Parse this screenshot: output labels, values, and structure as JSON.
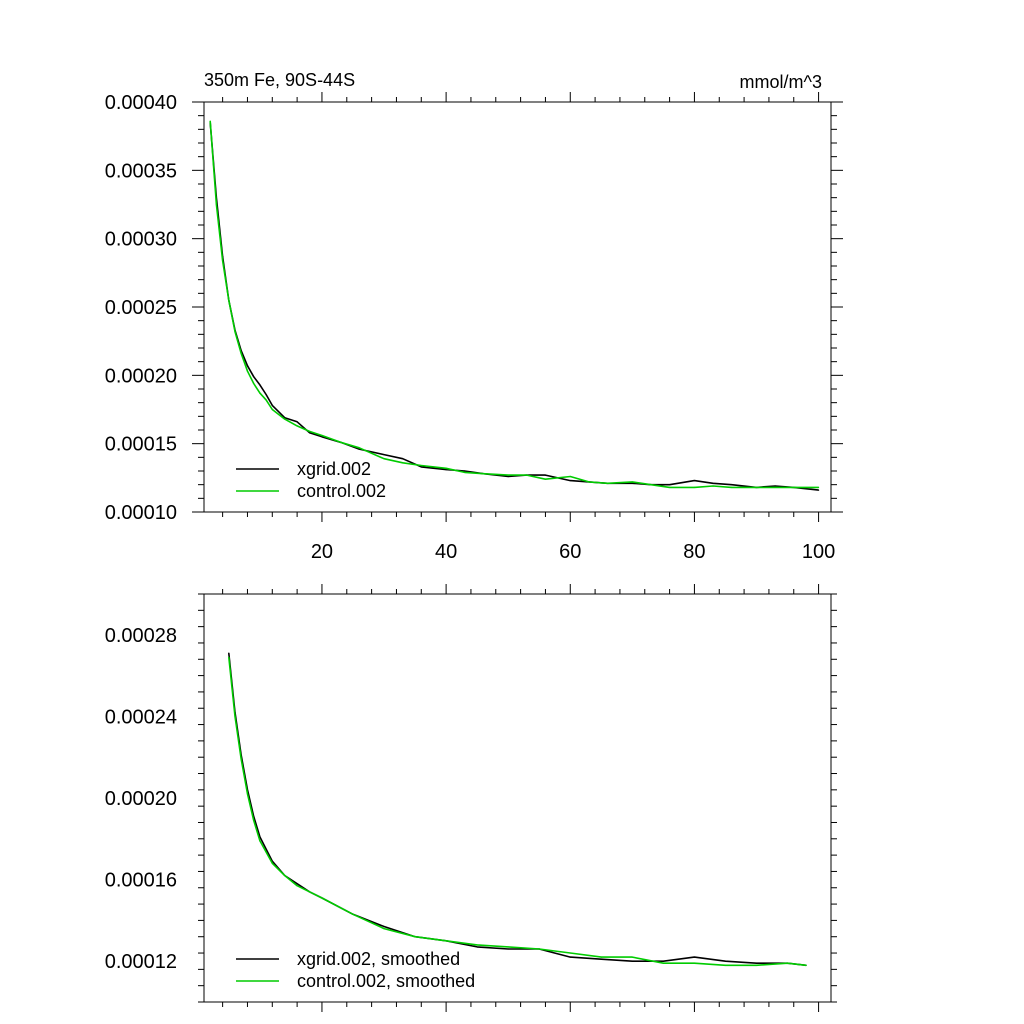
{
  "chart_data": [
    {
      "type": "line",
      "title": "350m Fe, 90S-44S",
      "units": "mmol/m^3",
      "xlim": [
        1,
        102
      ],
      "ylim": [
        0.0001,
        0.0004
      ],
      "xticks": [
        20,
        40,
        60,
        80,
        100
      ],
      "xtick_labels": [
        "20",
        "40",
        "60",
        "80",
        "100"
      ],
      "yticks": [
        0.0001,
        0.00015,
        0.0002,
        0.00025,
        0.0003,
        0.00035,
        0.0004
      ],
      "ytick_labels": [
        "0.00010",
        "0.00015",
        "0.00020",
        "0.00025",
        "0.00030",
        "0.00035",
        "0.00040"
      ],
      "legend_position": "bottom-left",
      "colors": {
        "xgrid.002": "#000000",
        "control.002": "#00cc00"
      },
      "series": [
        {
          "name": "xgrid.002",
          "x": [
            2,
            3,
            4,
            5,
            6,
            7,
            8,
            9,
            10,
            11,
            12,
            14,
            16,
            18,
            20,
            23,
            26,
            30,
            33,
            36,
            40,
            43,
            46,
            50,
            53,
            56,
            60,
            63,
            66,
            70,
            73,
            76,
            80,
            83,
            86,
            90,
            93,
            96,
            100
          ],
          "y": [
            0.000385,
            0.00033,
            0.000287,
            0.000255,
            0.000233,
            0.000218,
            0.000207,
            0.000199,
            0.000193,
            0.000186,
            0.000178,
            0.000169,
            0.000166,
            0.000158,
            0.000155,
            0.000151,
            0.000146,
            0.000142,
            0.000139,
            0.000133,
            0.000131,
            0.00013,
            0.000128,
            0.000126,
            0.000127,
            0.000127,
            0.000123,
            0.000122,
            0.000121,
            0.000121,
            0.00012,
            0.00012,
            0.000123,
            0.000121,
            0.00012,
            0.000118,
            0.000119,
            0.000118,
            0.000116
          ]
        },
        {
          "name": "control.002",
          "x": [
            2,
            3,
            4,
            5,
            6,
            7,
            8,
            9,
            10,
            11,
            12,
            14,
            16,
            18,
            20,
            23,
            26,
            30,
            33,
            36,
            40,
            43,
            46,
            50,
            53,
            56,
            60,
            63,
            66,
            70,
            73,
            76,
            80,
            83,
            86,
            90,
            93,
            96,
            100
          ],
          "y": [
            0.000386,
            0.000325,
            0.000284,
            0.000255,
            0.000232,
            0.000216,
            0.000203,
            0.000194,
            0.000187,
            0.000182,
            0.000175,
            0.000168,
            0.000163,
            0.000159,
            0.000156,
            0.000151,
            0.000147,
            0.000139,
            0.000136,
            0.000134,
            0.000132,
            0.000129,
            0.000128,
            0.000127,
            0.000127,
            0.000124,
            0.000126,
            0.000122,
            0.000121,
            0.000122,
            0.00012,
            0.000118,
            0.000118,
            0.000119,
            0.000118,
            0.000118,
            0.000118,
            0.000118,
            0.000118
          ]
        }
      ]
    },
    {
      "type": "line",
      "title": "",
      "xlim": [
        1,
        102
      ],
      "ylim": [
        0.0001,
        0.0003
      ],
      "xticks": [
        20,
        40,
        60,
        80,
        100
      ],
      "xtick_labels": [],
      "yticks": [
        0.00012,
        0.00016,
        0.0002,
        0.00024,
        0.00028
      ],
      "ytick_labels": [
        "0.00012",
        "0.00016",
        "0.00020",
        "0.00024",
        "0.00028"
      ],
      "legend_position": "bottom-left",
      "colors": {
        "xgrid.002, smoothed": "#000000",
        "control.002, smoothed": "#00cc00"
      },
      "series": [
        {
          "name": "xgrid.002, smoothed",
          "x": [
            5,
            6,
            7,
            8,
            9,
            10,
            12,
            14,
            16,
            18,
            20,
            25,
            30,
            35,
            40,
            45,
            50,
            55,
            60,
            65,
            70,
            75,
            80,
            85,
            90,
            95,
            98
          ],
          "y": [
            0.000271,
            0.000242,
            0.000221,
            0.000204,
            0.000191,
            0.000181,
            0.000169,
            0.000162,
            0.000158,
            0.000154,
            0.000151,
            0.000143,
            0.000137,
            0.000132,
            0.00013,
            0.000127,
            0.000126,
            0.000126,
            0.000122,
            0.000121,
            0.00012,
            0.00012,
            0.000122,
            0.00012,
            0.000119,
            0.000119,
            0.000118
          ]
        },
        {
          "name": "control.002, smoothed",
          "x": [
            5,
            6,
            7,
            8,
            9,
            10,
            12,
            14,
            16,
            18,
            20,
            25,
            30,
            35,
            40,
            45,
            50,
            55,
            60,
            65,
            70,
            75,
            80,
            85,
            90,
            95,
            98
          ],
          "y": [
            0.000269,
            0.00024,
            0.000219,
            0.000202,
            0.000189,
            0.000179,
            0.000168,
            0.000162,
            0.000157,
            0.000154,
            0.000151,
            0.000143,
            0.000136,
            0.000132,
            0.00013,
            0.000128,
            0.000127,
            0.000126,
            0.000124,
            0.000122,
            0.000122,
            0.000119,
            0.000119,
            0.000118,
            0.000118,
            0.000119,
            0.000118
          ]
        }
      ]
    }
  ]
}
